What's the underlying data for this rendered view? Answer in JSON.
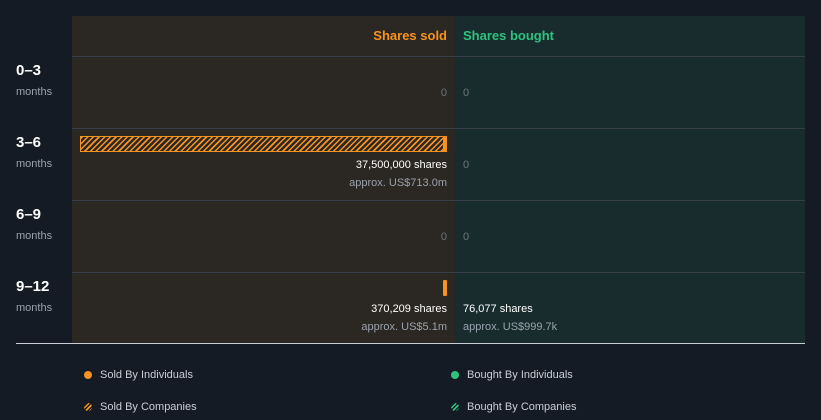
{
  "colors": {
    "sold": "#f7931e",
    "bought": "#2ec27e",
    "sold_bg": "#2b2722",
    "bought_bg": "#182c2e",
    "page_bg": "#151b24"
  },
  "chart_data": {
    "type": "bar",
    "categories": [
      "0–3",
      "3–6",
      "6–9",
      "9–12"
    ],
    "unit_label": "months",
    "sold_header": "Shares sold",
    "bought_header": "Shares bought",
    "sold": [
      {
        "shares": 0,
        "shares_text": "0",
        "approx_text": ""
      },
      {
        "shares": 37500000,
        "shares_text": "37,500,000 shares",
        "approx_text": "approx. US$713.0m"
      },
      {
        "shares": 0,
        "shares_text": "0",
        "approx_text": ""
      },
      {
        "shares": 370209,
        "shares_text": "370,209 shares",
        "approx_text": "approx. US$5.1m"
      }
    ],
    "bought": [
      {
        "shares": 0,
        "shares_text": "0",
        "approx_text": ""
      },
      {
        "shares": 0,
        "shares_text": "0",
        "approx_text": ""
      },
      {
        "shares": 0,
        "shares_text": "0",
        "approx_text": ""
      },
      {
        "shares": 76077,
        "shares_text": "76,077 shares",
        "approx_text": "approx. US$999.7k"
      }
    ],
    "sold_bar_types": [
      "none",
      "companies",
      "none",
      "individuals"
    ],
    "legend": [
      {
        "label": "Sold By Individuals",
        "icon": "solid-dot",
        "color": "#f7931e"
      },
      {
        "label": "Bought By Individuals",
        "icon": "solid-dot",
        "color": "#2ec27e"
      },
      {
        "label": "Sold By Companies",
        "icon": "hatched-dot",
        "color": "#f7931e"
      },
      {
        "label": "Bought By Companies",
        "icon": "hatched-dot",
        "color": "#2ec27e"
      }
    ]
  }
}
